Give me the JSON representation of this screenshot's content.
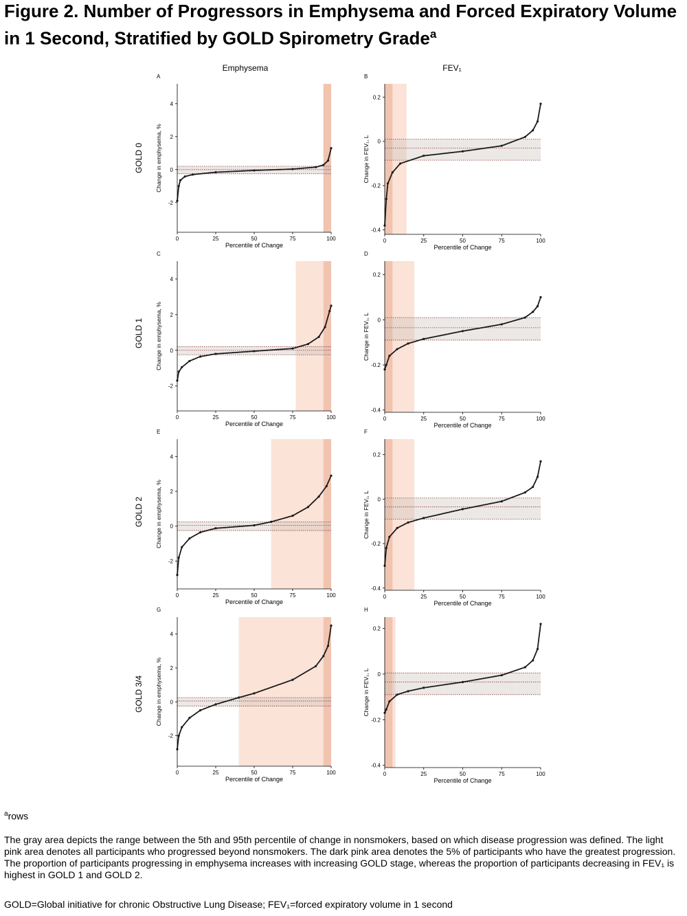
{
  "figure": {
    "title": "Figure 2. Number of Progressors in Emphysema and Forced Expiratory Volume in 1 Second, Stratified by GOLD Spirometry Grade",
    "title_sup": "a",
    "col_headers": [
      "Emphysema",
      "FEV₁"
    ],
    "row_labels": [
      "GOLD 0",
      "GOLD 1",
      "GOLD 2",
      "GOLD 3/4"
    ],
    "footnote_sup": "a",
    "footnote": "rows",
    "legend_text": "The gray area depicts the range between the 5th and 95th percentile of change in nonsmokers, based on which disease progression was defined. The light pink area denotes all participants who progressed beyond nonsmokers. The dark pink area denotes the 5% of participants who have the greatest progression. The proportion of participants progressing in emphysema increases with increasing GOLD stage, whereas the proportion of participants decreasing in FEV₁ is highest in GOLD 1 and GOLD 2.",
    "abbrev_text": "GOLD=Global initiative for chronic Obstructive Lung Disease; FEV₁=forced expiratory volume in 1 second"
  },
  "colors": {
    "light_pink": "#fbe3d8",
    "dark_pink": "#f1c4b0",
    "band_gray": "#c8bcb8",
    "band_line": "#8a3f3f",
    "curve": "#1a1a1a"
  },
  "chart_data": [
    {
      "panel": "A",
      "type": "scatter",
      "xlabel": "Percentile of Change",
      "ylabel": "Change in emphysema, %",
      "xticks": [
        0,
        25,
        50,
        75,
        100
      ],
      "yticks": [
        -2,
        0,
        2,
        4
      ],
      "ylim": [
        -3.8,
        5.2
      ],
      "light_pink_from": 95,
      "dark_pink_from": 95,
      "band": [
        -0.25,
        0.2
      ],
      "band_mid": 0.0,
      "direction": "high",
      "curve": [
        [
          0,
          -1.9
        ],
        [
          1,
          -1.0
        ],
        [
          2,
          -0.65
        ],
        [
          5,
          -0.42
        ],
        [
          10,
          -0.3
        ],
        [
          25,
          -0.16
        ],
        [
          50,
          -0.05
        ],
        [
          75,
          0.03
        ],
        [
          90,
          0.15
        ],
        [
          95,
          0.28
        ],
        [
          98,
          0.55
        ],
        [
          100,
          1.3
        ]
      ]
    },
    {
      "panel": "B",
      "type": "scatter",
      "xlabel": "Percentile of Change",
      "ylabel": "Change in FEV₁, L",
      "xticks": [
        0,
        25,
        50,
        75,
        100
      ],
      "yticks": [
        -0.4,
        -0.2,
        0,
        0.2
      ],
      "ylim": [
        -0.42,
        0.26
      ],
      "light_pink_from": 14,
      "dark_pink_from": 5,
      "band": [
        -0.085,
        0.01
      ],
      "band_mid": -0.03,
      "direction": "low",
      "curve": [
        [
          0,
          -0.38
        ],
        [
          1,
          -0.26
        ],
        [
          2,
          -0.19
        ],
        [
          5,
          -0.14
        ],
        [
          10,
          -0.1
        ],
        [
          25,
          -0.065
        ],
        [
          50,
          -0.045
        ],
        [
          75,
          -0.02
        ],
        [
          90,
          0.02
        ],
        [
          95,
          0.05
        ],
        [
          98,
          0.09
        ],
        [
          100,
          0.17
        ]
      ]
    },
    {
      "panel": "C",
      "type": "scatter",
      "xlabel": "Percentile of Change",
      "ylabel": "Change in emphysema, %",
      "xticks": [
        0,
        25,
        50,
        75,
        100
      ],
      "yticks": [
        -2,
        0,
        2,
        4
      ],
      "ylim": [
        -3.4,
        5.0
      ],
      "light_pink_from": 77,
      "dark_pink_from": 95,
      "band": [
        -0.25,
        0.2
      ],
      "band_mid": 0.0,
      "direction": "high",
      "curve": [
        [
          0,
          -1.7
        ],
        [
          1,
          -1.2
        ],
        [
          3,
          -0.95
        ],
        [
          8,
          -0.6
        ],
        [
          15,
          -0.35
        ],
        [
          25,
          -0.2
        ],
        [
          50,
          -0.05
        ],
        [
          75,
          0.1
        ],
        [
          85,
          0.35
        ],
        [
          92,
          0.75
        ],
        [
          96,
          1.3
        ],
        [
          99,
          2.2
        ],
        [
          100,
          2.5
        ]
      ]
    },
    {
      "panel": "D",
      "type": "scatter",
      "xlabel": "Percentile of Change",
      "ylabel": "Change in FEV₁, L",
      "xticks": [
        0,
        25,
        50,
        75,
        100
      ],
      "yticks": [
        -0.4,
        -0.2,
        0,
        0.2
      ],
      "ylim": [
        -0.41,
        0.26
      ],
      "light_pink_from": 19,
      "dark_pink_from": 5,
      "band": [
        -0.09,
        0.01
      ],
      "band_mid": -0.035,
      "direction": "low",
      "curve": [
        [
          0,
          -0.22
        ],
        [
          1,
          -0.2
        ],
        [
          3,
          -0.16
        ],
        [
          8,
          -0.13
        ],
        [
          15,
          -0.105
        ],
        [
          25,
          -0.085
        ],
        [
          50,
          -0.05
        ],
        [
          75,
          -0.02
        ],
        [
          90,
          0.01
        ],
        [
          95,
          0.035
        ],
        [
          98,
          0.06
        ],
        [
          100,
          0.1
        ]
      ]
    },
    {
      "panel": "E",
      "type": "scatter",
      "xlabel": "Percentile of Change",
      "ylabel": "Change in emphysema, %",
      "xticks": [
        0,
        25,
        50,
        75,
        100
      ],
      "yticks": [
        -2,
        0,
        2,
        4
      ],
      "ylim": [
        -3.6,
        5.0
      ],
      "light_pink_from": 61,
      "dark_pink_from": 95,
      "band": [
        -0.25,
        0.25
      ],
      "band_mid": 0.05,
      "direction": "high",
      "curve": [
        [
          0,
          -2.8
        ],
        [
          1,
          -1.8
        ],
        [
          3,
          -1.2
        ],
        [
          8,
          -0.7
        ],
        [
          15,
          -0.35
        ],
        [
          25,
          -0.12
        ],
        [
          50,
          0.05
        ],
        [
          61,
          0.25
        ],
        [
          75,
          0.6
        ],
        [
          85,
          1.1
        ],
        [
          92,
          1.7
        ],
        [
          97,
          2.3
        ],
        [
          100,
          2.9
        ]
      ]
    },
    {
      "panel": "F",
      "type": "scatter",
      "xlabel": "Percentile of Change",
      "ylabel": "Change in FEV₁, L",
      "xticks": [
        0,
        25,
        50,
        75,
        100
      ],
      "yticks": [
        -0.4,
        -0.2,
        0,
        0.2
      ],
      "ylim": [
        -0.41,
        0.27
      ],
      "light_pink_from": 19,
      "dark_pink_from": 5,
      "band": [
        -0.09,
        0.005
      ],
      "band_mid": -0.035,
      "direction": "low",
      "curve": [
        [
          0,
          -0.3
        ],
        [
          1,
          -0.22
        ],
        [
          3,
          -0.17
        ],
        [
          8,
          -0.13
        ],
        [
          15,
          -0.105
        ],
        [
          25,
          -0.085
        ],
        [
          50,
          -0.045
        ],
        [
          75,
          -0.01
        ],
        [
          90,
          0.03
        ],
        [
          95,
          0.055
        ],
        [
          98,
          0.1
        ],
        [
          100,
          0.17
        ]
      ]
    },
    {
      "panel": "G",
      "type": "scatter",
      "xlabel": "Percentile of Change",
      "ylabel": "Change in emphysema, %",
      "xticks": [
        0,
        25,
        50,
        75,
        100
      ],
      "yticks": [
        -2,
        0,
        2,
        4
      ],
      "ylim": [
        -3.8,
        5.0
      ],
      "light_pink_from": 40,
      "dark_pink_from": 95,
      "band": [
        -0.25,
        0.25
      ],
      "band_mid": 0.05,
      "direction": "high",
      "curve": [
        [
          0,
          -2.8
        ],
        [
          1,
          -2.0
        ],
        [
          3,
          -1.5
        ],
        [
          8,
          -0.95
        ],
        [
          15,
          -0.5
        ],
        [
          25,
          -0.15
        ],
        [
          40,
          0.25
        ],
        [
          50,
          0.5
        ],
        [
          75,
          1.3
        ],
        [
          90,
          2.1
        ],
        [
          95,
          2.7
        ],
        [
          98,
          3.3
        ],
        [
          100,
          4.5
        ]
      ]
    },
    {
      "panel": "H",
      "type": "scatter",
      "xlabel": "Percentile of Change",
      "ylabel": "Change in FEV₁, L",
      "xticks": [
        0,
        25,
        50,
        75,
        100
      ],
      "yticks": [
        -0.4,
        -0.2,
        0,
        0.2
      ],
      "ylim": [
        -0.41,
        0.25
      ],
      "light_pink_from": 7,
      "dark_pink_from": 5,
      "band": [
        -0.09,
        0.005
      ],
      "band_mid": -0.035,
      "direction": "low",
      "curve": [
        [
          0,
          -0.17
        ],
        [
          1,
          -0.155
        ],
        [
          3,
          -0.12
        ],
        [
          8,
          -0.09
        ],
        [
          15,
          -0.075
        ],
        [
          25,
          -0.06
        ],
        [
          50,
          -0.035
        ],
        [
          75,
          -0.005
        ],
        [
          90,
          0.03
        ],
        [
          95,
          0.06
        ],
        [
          98,
          0.11
        ],
        [
          100,
          0.22
        ]
      ]
    }
  ]
}
